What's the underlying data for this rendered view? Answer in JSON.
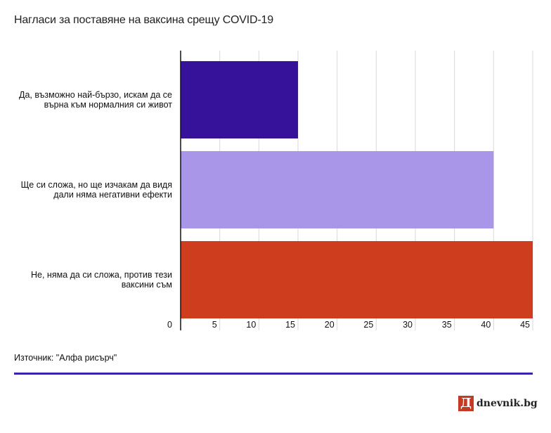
{
  "title": "Нагласи за поставяне на ваксина срещу COVID-19",
  "source": "Източник: \"Алфа рисърч\"",
  "brand": {
    "logo_letter": "Д",
    "name": "dnevnik.bg"
  },
  "colors": {
    "rule": "#3a23b0",
    "logo": "#c43a22"
  },
  "chart_data": {
    "type": "bar",
    "orientation": "horizontal",
    "categories": [
      [
        "Да, възможно най-бързо, искам да се",
        "върна към нормалния си живот"
      ],
      [
        "Ще си сложа, но ще изчакам да видя",
        "дали няма негативни ефекти"
      ],
      [
        "Не, няма да си сложа, против тези",
        "ваксини съм"
      ]
    ],
    "values": [
      15,
      40,
      45
    ],
    "colors": [
      "#36129a",
      "#a996e8",
      "#cd3d1e"
    ],
    "xlim": [
      0,
      45
    ],
    "xticks": [
      0,
      5,
      10,
      15,
      20,
      25,
      30,
      35,
      40,
      45
    ],
    "grid": true
  }
}
